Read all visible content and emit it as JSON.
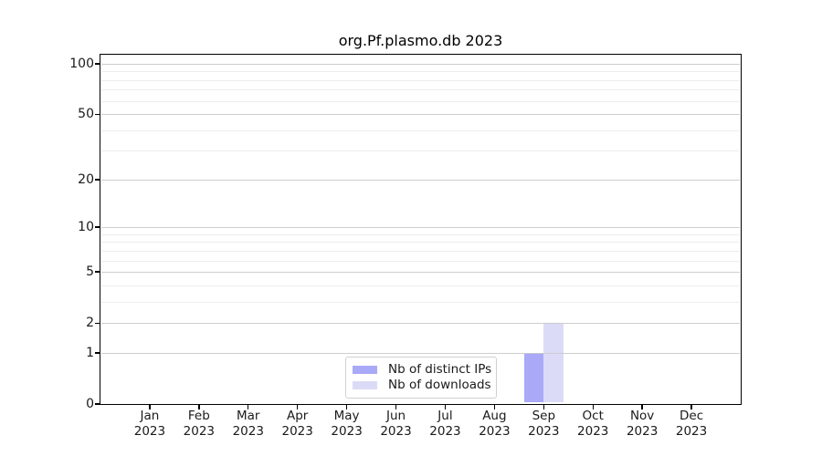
{
  "chart_data": {
    "type": "bar",
    "title": "org.Pf.plasmo.db 2023",
    "x_ticks": [
      {
        "month": "Jan",
        "year": "2023"
      },
      {
        "month": "Feb",
        "year": "2023"
      },
      {
        "month": "Mar",
        "year": "2023"
      },
      {
        "month": "Apr",
        "year": "2023"
      },
      {
        "month": "May",
        "year": "2023"
      },
      {
        "month": "Jun",
        "year": "2023"
      },
      {
        "month": "Jul",
        "year": "2023"
      },
      {
        "month": "Aug",
        "year": "2023"
      },
      {
        "month": "Sep",
        "year": "2023"
      },
      {
        "month": "Oct",
        "year": "2023"
      },
      {
        "month": "Nov",
        "year": "2023"
      },
      {
        "month": "Dec",
        "year": "2023"
      }
    ],
    "y_ticks": [
      0,
      1,
      2,
      5,
      10,
      20,
      50,
      100
    ],
    "y_minor_gridlines": [
      3,
      4,
      6,
      7,
      8,
      9,
      30,
      40,
      60,
      70,
      80,
      90
    ],
    "y_scale": "log10(1+y)",
    "ylim": [
      0,
      113
    ],
    "grid": "horizontal major+minor",
    "legend_position": "lower center",
    "series": [
      {
        "name": "Nb of distinct IPs",
        "color": "#a9a9f7",
        "values": [
          0,
          0,
          0,
          0,
          0,
          0,
          0,
          0,
          1,
          0,
          0,
          0
        ]
      },
      {
        "name": "Nb of downloads",
        "color": "#dbdbf8",
        "values": [
          0,
          0,
          0,
          0,
          0,
          0,
          0,
          0,
          2,
          0,
          0,
          0
        ]
      }
    ]
  },
  "colors": {
    "background": "#ffffff",
    "axis": "#000000",
    "text": "#1a1a1a",
    "major_grid": "#c9c9c9",
    "minor_grid": "#ededed",
    "legend_border": "#d0d0d0"
  }
}
